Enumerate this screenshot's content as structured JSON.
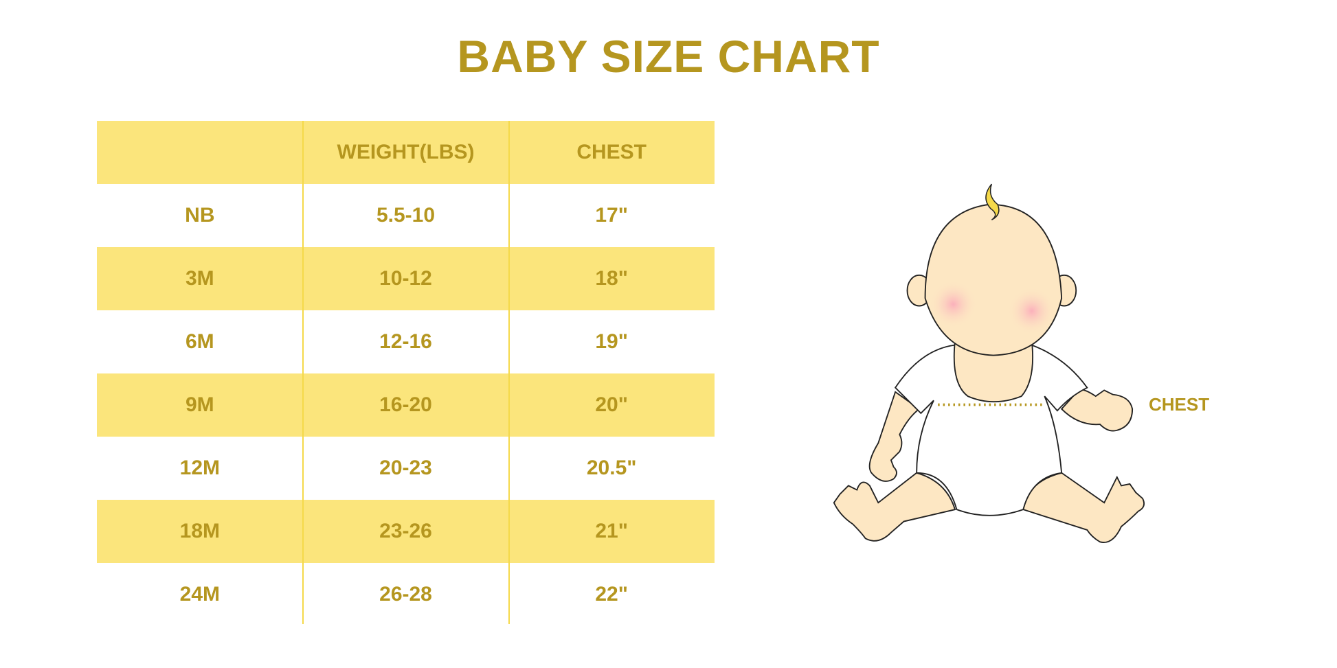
{
  "title": "BABY SIZE CHART",
  "colors": {
    "accent": "#b5961f",
    "row_fill": "#fbe57c",
    "skin": "#fde7c3",
    "cheek": "#fbb8c0"
  },
  "table": {
    "headers": [
      "",
      "WEIGHT(LBS)",
      "CHEST"
    ],
    "rows": [
      [
        "NB",
        "5.5-10",
        "17\""
      ],
      [
        "3M",
        "10-12",
        "18\""
      ],
      [
        "6M",
        "12-16",
        "19\""
      ],
      [
        "9M",
        "16-20",
        "20\""
      ],
      [
        "12M",
        "20-23",
        "20.5\""
      ],
      [
        "18M",
        "23-26",
        "21\""
      ],
      [
        "24M",
        "26-28",
        "22\""
      ]
    ]
  },
  "illustration": {
    "chest_label": "CHEST"
  }
}
